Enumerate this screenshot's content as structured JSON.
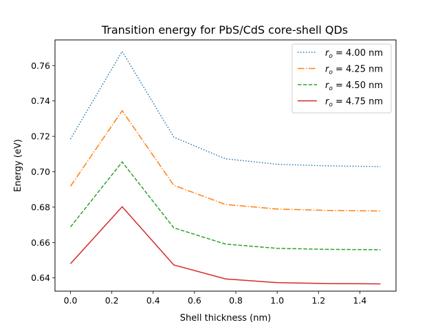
{
  "chart_data": {
    "type": "line",
    "title": "Transition energy for PbS/CdS core-shell QDs",
    "xlabel": "Shell thickness (nm)",
    "ylabel": "Energy (eV)",
    "xlim": [
      -0.075,
      1.575
    ],
    "ylim": [
      0.6325,
      0.7745
    ],
    "xticks": [
      0.0,
      0.2,
      0.4,
      0.6,
      0.8,
      1.0,
      1.2,
      1.4
    ],
    "xtick_labels": [
      "0.0",
      "0.2",
      "0.4",
      "0.6",
      "0.8",
      "1.0",
      "1.2",
      "1.4"
    ],
    "yticks": [
      0.64,
      0.66,
      0.68,
      0.7,
      0.72,
      0.74,
      0.76
    ],
    "ytick_labels": [
      "0.64",
      "0.66",
      "0.68",
      "0.70",
      "0.72",
      "0.74",
      "0.76"
    ],
    "grid": false,
    "legend_position": "top-right",
    "x": [
      0.0,
      0.25,
      0.5,
      0.75,
      1.0,
      1.25,
      1.5
    ],
    "series": [
      {
        "name_symbol": "r",
        "name_sub": "o",
        "name_value": " = 4.00 nm",
        "color": "#1f77b4",
        "dash": "dotted",
        "values": [
          0.7185,
          0.768,
          0.7195,
          0.7073,
          0.7042,
          0.7033,
          0.7029
        ]
      },
      {
        "name_symbol": "r",
        "name_sub": "o",
        "name_value": " = 4.25 nm",
        "color": "#ff7f0e",
        "dash": "dashdot",
        "values": [
          0.6918,
          0.7345,
          0.6923,
          0.6815,
          0.6789,
          0.6781,
          0.6778
        ]
      },
      {
        "name_symbol": "r",
        "name_sub": "o",
        "name_value": " = 4.50 nm",
        "color": "#2ca02c",
        "dash": "dashed",
        "values": [
          0.6688,
          0.7055,
          0.6683,
          0.6591,
          0.6567,
          0.6561,
          0.6559
        ]
      },
      {
        "name_symbol": "r",
        "name_sub": "o",
        "name_value": " = 4.75 nm",
        "color": "#d62728",
        "dash": "solid",
        "values": [
          0.648,
          0.6802,
          0.6473,
          0.6394,
          0.6373,
          0.6368,
          0.6366
        ]
      }
    ]
  }
}
